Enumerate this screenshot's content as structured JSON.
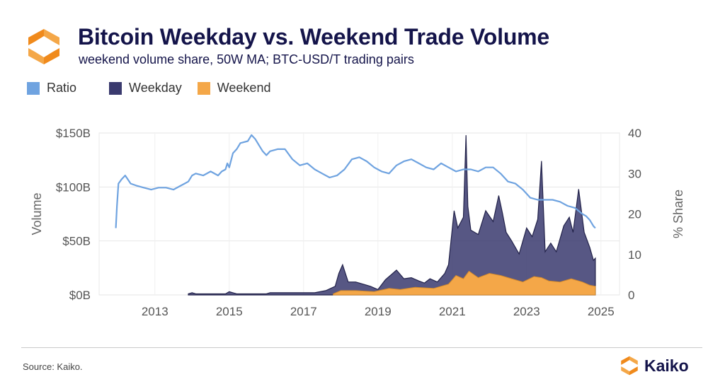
{
  "header": {
    "title": "Bitcoin Weekday vs. Weekend Trade Volume",
    "subtitle": "weekend volume share, 50W MA; BTC-USD/T trading pairs"
  },
  "footer": {
    "source": "Source: Kaiko.",
    "brand": "Kaiko"
  },
  "colors": {
    "ratio": "#6fa3e0",
    "weekday": "#3a3a6e",
    "weekend": "#f4a748",
    "title": "#14144a",
    "logo_orange": "#f4a748"
  },
  "icons": {
    "logo": "kaiko-logo-icon"
  },
  "chart_data": {
    "type": "area",
    "legend": [
      {
        "name": "Ratio",
        "color": "#6fa3e0"
      },
      {
        "name": "Weekday",
        "color": "#3a3a6e"
      },
      {
        "name": "Weekend",
        "color": "#f4a748"
      }
    ],
    "legend_position": "top-left",
    "ylabel_left": "Volume",
    "ylabel_right": "% Share",
    "y_left_ticks": [
      "$0B",
      "$50B",
      "$100B",
      "$150B"
    ],
    "y_left_tick_values": [
      0,
      50,
      100,
      150
    ],
    "y_left_range": [
      0,
      150
    ],
    "y_right_ticks": [
      "0",
      "10",
      "20",
      "30",
      "40"
    ],
    "y_right_tick_values": [
      0,
      10,
      20,
      30,
      40
    ],
    "y_right_range": [
      0,
      40
    ],
    "x_ticks": [
      "2013",
      "2015",
      "2017",
      "2019",
      "2021",
      "2023",
      "2025"
    ],
    "x_tick_values": [
      2013,
      2015,
      2017,
      2019,
      2021,
      2023,
      2025
    ],
    "x_range": [
      2011.5,
      2025.5
    ],
    "grid": true,
    "series": [
      {
        "name": "Ratio",
        "axis": "right",
        "x": [
          2011.95,
          2011.98,
          2012.02,
          2012.1,
          2012.2,
          2012.35,
          2012.5,
          2012.7,
          2012.9,
          2013.1,
          2013.3,
          2013.5,
          2013.7,
          2013.8,
          2013.9,
          2014.0,
          2014.1,
          2014.3,
          2014.5,
          2014.7,
          2014.8,
          2014.9,
          2014.95,
          2015.0,
          2015.1,
          2015.2,
          2015.3,
          2015.5,
          2015.6,
          2015.7,
          2015.8,
          2015.9,
          2016.0,
          2016.1,
          2016.3,
          2016.5,
          2016.7,
          2016.9,
          2017.1,
          2017.3,
          2017.5,
          2017.7,
          2017.9,
          2018.1,
          2018.3,
          2018.5,
          2018.7,
          2018.9,
          2019.1,
          2019.3,
          2019.5,
          2019.7,
          2019.9,
          2020.1,
          2020.3,
          2020.5,
          2020.7,
          2020.9,
          2021.1,
          2021.3,
          2021.5,
          2021.7,
          2021.9,
          2022.1,
          2022.3,
          2022.5,
          2022.7,
          2022.9,
          2023.1,
          2023.3,
          2023.5,
          2023.7,
          2023.9,
          2024.1,
          2024.3,
          2024.5,
          2024.6,
          2024.7,
          2024.8,
          2024.85
        ],
        "values": [
          16.5,
          22,
          27.5,
          28.5,
          29.5,
          27.5,
          27,
          26.5,
          26,
          26.5,
          26.5,
          26,
          27,
          27.5,
          28,
          29.5,
          30,
          29.5,
          30.5,
          29.5,
          30.5,
          31,
          32.5,
          31.5,
          35,
          36,
          37.5,
          38,
          39.5,
          38.5,
          37,
          35.5,
          34.5,
          35.5,
          36,
          36,
          33.5,
          32,
          32.5,
          31,
          30,
          29,
          29.5,
          31,
          33.5,
          34,
          33,
          31.5,
          30.5,
          30,
          32,
          33,
          33.5,
          32.5,
          31.5,
          31,
          32.5,
          31.5,
          30.5,
          31,
          31,
          30.5,
          31.5,
          31.5,
          30,
          28,
          27.5,
          26,
          24,
          23.5,
          23.5,
          23.5,
          23,
          22,
          21.5,
          20,
          19.5,
          18.5,
          17,
          16.5
        ]
      },
      {
        "name": "Weekday",
        "axis": "left",
        "x": [
          2013.9,
          2014.0,
          2014.1,
          2014.9,
          2015.0,
          2015.1,
          2015.2,
          2016.0,
          2016.1,
          2017.3,
          2017.6,
          2017.85,
          2017.95,
          2018.05,
          2018.2,
          2018.4,
          2018.6,
          2018.8,
          2019.0,
          2019.2,
          2019.4,
          2019.5,
          2019.7,
          2019.9,
          2020.1,
          2020.25,
          2020.4,
          2020.6,
          2020.8,
          2020.9,
          2021.05,
          2021.15,
          2021.3,
          2021.37,
          2021.42,
          2021.5,
          2021.7,
          2021.9,
          2022.1,
          2022.25,
          2022.35,
          2022.45,
          2022.6,
          2022.8,
          2023.0,
          2023.15,
          2023.3,
          2023.4,
          2023.5,
          2023.65,
          2023.8,
          2024.0,
          2024.15,
          2024.25,
          2024.4,
          2024.55,
          2024.7,
          2024.8,
          2024.85
        ],
        "values": [
          1,
          2,
          1,
          1,
          3,
          2,
          1,
          1,
          2,
          2,
          4,
          8,
          20,
          28,
          12,
          12,
          10,
          8,
          5,
          14,
          20,
          23,
          15,
          16,
          13,
          11,
          15,
          12,
          20,
          28,
          78,
          62,
          72,
          148,
          82,
          60,
          56,
          78,
          68,
          92,
          76,
          58,
          50,
          38,
          62,
          54,
          70,
          124,
          40,
          48,
          40,
          64,
          72,
          58,
          98,
          58,
          44,
          32,
          34
        ]
      },
      {
        "name": "Weekend",
        "axis": "left",
        "x": [
          2017.8,
          2018.0,
          2018.4,
          2018.9,
          2019.3,
          2019.6,
          2020.0,
          2020.5,
          2020.9,
          2021.1,
          2021.3,
          2021.45,
          2021.7,
          2022.0,
          2022.3,
          2022.6,
          2022.9,
          2023.2,
          2023.4,
          2023.6,
          2023.9,
          2024.2,
          2024.5,
          2024.7,
          2024.85
        ],
        "values": [
          1,
          4,
          4,
          3,
          6,
          5,
          7,
          6,
          10,
          18,
          15,
          22,
          16,
          20,
          18,
          15,
          12,
          17,
          16,
          13,
          12,
          15,
          12,
          9,
          8
        ]
      }
    ]
  }
}
